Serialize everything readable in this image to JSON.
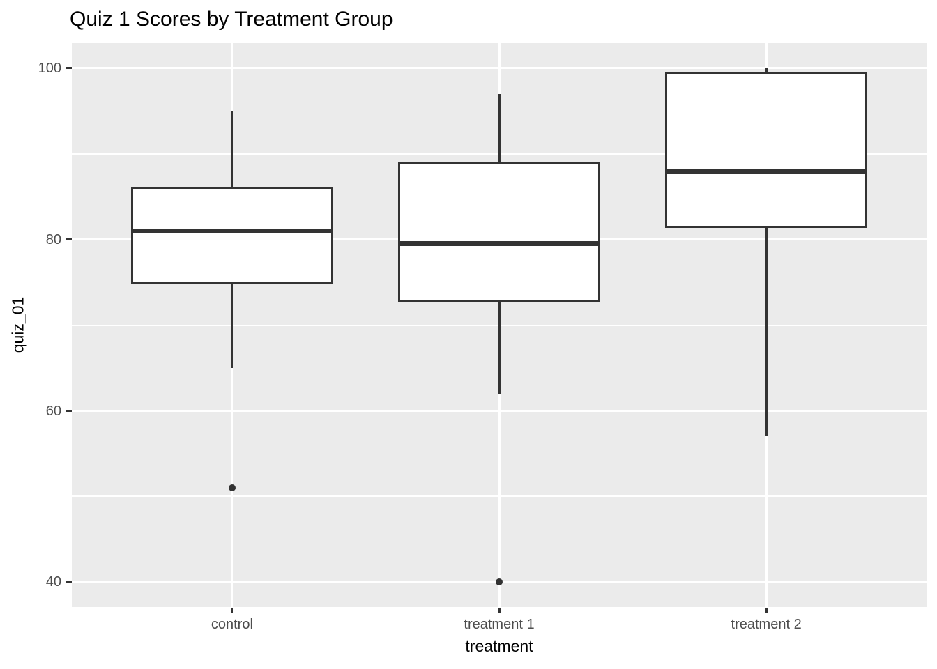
{
  "chart_data": {
    "type": "boxplot",
    "title": "Quiz 1 Scores by Treatment Group",
    "xlabel": "treatment",
    "ylabel": "quiz_01",
    "categories": [
      "control",
      "treatment 1",
      "treatment 2"
    ],
    "boxes": [
      {
        "category": "control",
        "whisker_low": 65,
        "q1": 75,
        "median": 81,
        "q3": 86,
        "whisker_high": 95,
        "outliers": [
          51
        ]
      },
      {
        "category": "treatment 1",
        "whisker_low": 62,
        "q1": 72.75,
        "median": 79.5,
        "q3": 89,
        "whisker_high": 97,
        "outliers": [
          40
        ]
      },
      {
        "category": "treatment 2",
        "whisker_low": 57,
        "q1": 81.5,
        "median": 88,
        "q3": 99.5,
        "whisker_high": 100,
        "outliers": []
      }
    ],
    "y_axis": {
      "ticks": [
        100,
        80,
        60,
        40
      ],
      "minor_ticks": [
        90,
        70,
        50
      ],
      "ylim": [
        37.1,
        103.0
      ]
    },
    "x_axis": {
      "ticks": [
        "control",
        "treatment 1",
        "treatment 2"
      ]
    },
    "legend": "none",
    "grid": true,
    "colors": {
      "figure_background": "#FFFFFF",
      "panel_background": "#EBEBEB",
      "grid_major": "#FFFFFF",
      "grid_minor": "#FFFFFF",
      "box_outline": "#333333",
      "box_fill": "#FFFFFF",
      "median_line": "#333333",
      "outlier_point": "#333333",
      "tick_label": "#4D4D4D",
      "axis_title": "#000000",
      "title": "#000000"
    }
  }
}
